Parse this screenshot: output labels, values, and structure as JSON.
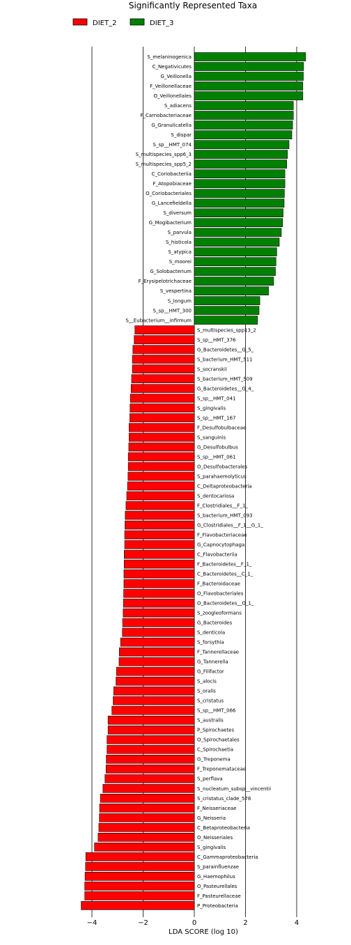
{
  "chart_data": {
    "type": "bar",
    "orientation": "horizontal",
    "title": "Significantly Represented Taxa",
    "xlabel": "LDA SCORE (log 10)",
    "ylabel": "",
    "xlim": [
      -4.4,
      5.8
    ],
    "xticks": [
      -4,
      -2,
      0,
      2,
      4
    ],
    "xtick_labels": [
      "−4",
      "−2",
      "0",
      "2",
      "4"
    ],
    "grid": "vertical lines at x ticks",
    "legend_position": "top-left",
    "colors": {
      "DIET_2": "#ff0000",
      "DIET_3": "#008000"
    },
    "series": [
      {
        "name": "DIET_3",
        "color": "#008000",
        "categories": [
          "S_melaninogenica",
          "C_Negativicutes",
          "G_Veillonella",
          "F_Veillonellaceae",
          "O_Veillonellales",
          "S_adiacens",
          "F_Carnobacteriaceae",
          "G_Granulicatella",
          "S_dispar",
          "S_sp__HMT_074",
          "S_multispecies_spp6_3",
          "S_multispecies_spp5_2",
          "C_Coriobacteriia",
          "F_Atopobiaceae",
          "O_Coriobacteriales",
          "G_Lancefieldella",
          "S_diversum",
          "G_Mogibacterium",
          "S_parvula",
          "S_histicola",
          "S_atypica",
          "S_moorei",
          "G_Solobacterium",
          "F_Erysipelotrichaceae",
          "S_vespertina",
          "S_longum",
          "S_sp__HMT_300",
          "S__Eubacterium__infirmum"
        ],
        "values": [
          4.35,
          4.27,
          4.26,
          4.24,
          4.24,
          3.87,
          3.87,
          3.84,
          3.81,
          3.7,
          3.64,
          3.61,
          3.54,
          3.54,
          3.52,
          3.51,
          3.47,
          3.45,
          3.4,
          3.32,
          3.22,
          3.19,
          3.17,
          3.1,
          2.9,
          2.56,
          2.53,
          2.47
        ]
      },
      {
        "name": "DIET_2",
        "color": "#ff0000",
        "categories": [
          "S_multispecies_spp13_2",
          "S_sp__HMT_376",
          "G_Bacteroidetes__G_5_",
          "S_bacterium_HMT_511",
          "S_socranskii",
          "S_bacterium_HMT_509",
          "G_Bacteroidetes__G_4_",
          "S_sp__HMT_041",
          "S_gingivalis",
          "S_sp__HMT_167",
          "F_Desulfobulbaceae",
          "S_sanguinis",
          "G_Desulfobulbus",
          "S_sp__HMT_061",
          "O_Desulfobacterales",
          "S_parahaemolyticus",
          "C_Deltaproteobacteria",
          "S_dentocariosa",
          "F_Clostridiales__F_1_",
          "S_bacterium_HMT_093",
          "G_Clostridiales__F_1__G_1_",
          "F_Flavobacteriaceae",
          "G_Capnocytophaga",
          "C_Flavobacteriia",
          "F_Bacteroidetes__F_1_",
          "C_Bacteroidetes__C_1_",
          "F_Bacteroidaceae",
          "O_Flavobacteriales",
          "O_Bacteroidetes__O_1_",
          "S_zoogleoformans",
          "G_Bacteroides",
          "S_denticola",
          "S_forsythia",
          "F_Tannerellaceae",
          "G_Tannerella",
          "G_Filifactor",
          "S_alocis",
          "S_oralis",
          "S_cristatus",
          "S_sp__HMT_066",
          "S_australis",
          "P_Spirochaetes",
          "O_Spirochaetales",
          "C_Spirochaetia",
          "G_Treponema",
          "F_Treponemataceae",
          "S_perflava",
          "S_nucleatum_subsp__vincentii",
          "S_cristatus_clade_578",
          "F_Neisseriaceae",
          "G_Neisseria",
          "C_Betaproteobacteria",
          "O_Neisseriales",
          "S_gingivalis",
          "C_Gammaproteobacteria",
          "S_parainfluenzae",
          "G_Haemophilus",
          "O_Pasteurellales",
          "F_Pasteurellaceae",
          "P_Proteobacteria"
        ],
        "values": [
          -2.32,
          -2.35,
          -2.4,
          -2.42,
          -2.42,
          -2.45,
          -2.47,
          -2.5,
          -2.51,
          -2.52,
          -2.55,
          -2.55,
          -2.56,
          -2.58,
          -2.58,
          -2.59,
          -2.61,
          -2.64,
          -2.67,
          -2.7,
          -2.71,
          -2.72,
          -2.72,
          -2.74,
          -2.74,
          -2.75,
          -2.75,
          -2.76,
          -2.77,
          -2.78,
          -2.8,
          -2.81,
          -2.88,
          -2.93,
          -2.94,
          -3.04,
          -3.06,
          -3.15,
          -3.17,
          -3.22,
          -3.37,
          -3.37,
          -3.41,
          -3.41,
          -3.44,
          -3.45,
          -3.49,
          -3.57,
          -3.67,
          -3.7,
          -3.71,
          -3.73,
          -3.76,
          -3.9,
          -4.24,
          -4.25,
          -4.27,
          -4.28,
          -4.28,
          -4.42
        ]
      }
    ]
  }
}
